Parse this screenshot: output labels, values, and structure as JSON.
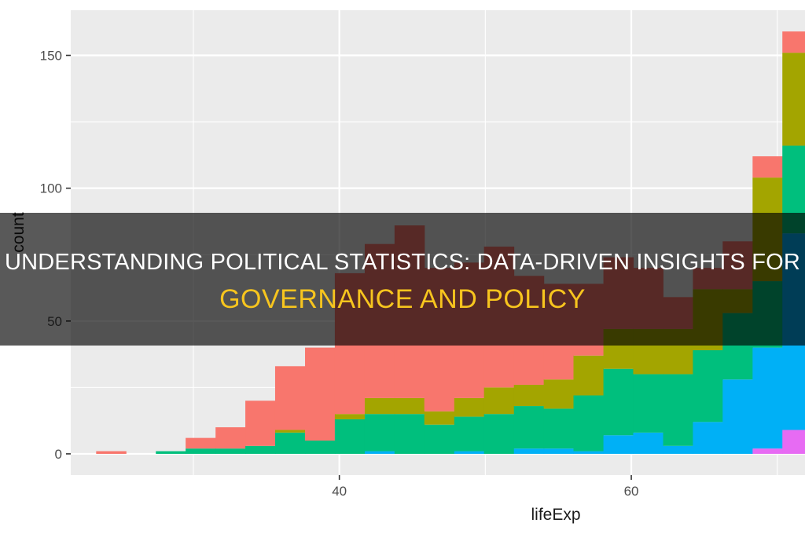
{
  "title": {
    "line1": "UNDERSTANDING POLITICAL STATISTICS: DATA-DRIVEN INSIGHTS FOR",
    "line2": "GOVERNANCE AND POLICY",
    "line1_color": "#ffffff",
    "line2_color": "#f7c51e"
  },
  "chart_data": {
    "type": "bar",
    "stacked": true,
    "histogram": true,
    "xlabel": "lifeExp",
    "ylabel": "count",
    "x_ticks": [
      40,
      60
    ],
    "y_ticks": [
      0,
      50,
      100,
      150
    ],
    "x_tick_labels": [
      "40",
      "60"
    ],
    "y_tick_labels": [
      "0",
      "50",
      "100",
      "150"
    ],
    "xlim": [
      21.6,
      71.9
    ],
    "ylim": [
      -8,
      167
    ],
    "grid": true,
    "panel_background": "#ebebeb",
    "binwidth": 2.04,
    "bin_centers": [
      24.36,
      26.4,
      28.45,
      30.49,
      32.54,
      34.58,
      36.62,
      38.67,
      40.71,
      42.76,
      44.8,
      46.84,
      48.89,
      50.93,
      52.98,
      55.02,
      57.06,
      59.11,
      61.15,
      63.2,
      65.24,
      67.28,
      69.33,
      71.37
    ],
    "series": [
      {
        "color": "#e76bf3",
        "values": [
          0,
          0,
          0,
          0,
          0,
          0,
          0,
          0,
          0,
          0,
          0,
          0,
          0,
          0,
          0,
          0,
          0,
          0,
          0,
          0,
          0,
          0,
          2,
          9
        ]
      },
      {
        "color": "#00b0f6",
        "values": [
          0,
          0,
          0,
          0,
          0,
          0,
          0,
          0,
          0,
          1,
          0,
          0,
          1,
          0,
          2,
          2,
          1,
          7,
          8,
          3,
          12,
          28,
          38,
          74
        ]
      },
      {
        "color": "#00bf7d",
        "values": [
          0,
          0,
          1,
          2,
          2,
          3,
          8,
          5,
          13,
          14,
          15,
          11,
          13,
          15,
          16,
          15,
          21,
          25,
          22,
          27,
          27,
          25,
          25,
          33
        ]
      },
      {
        "color": "#a3a500",
        "values": [
          0,
          0,
          0,
          0,
          0,
          0,
          1,
          0,
          2,
          6,
          6,
          5,
          7,
          10,
          8,
          11,
          15,
          15,
          17,
          17,
          23,
          9,
          39,
          35
        ]
      },
      {
        "color": "#f8766d",
        "values": [
          1,
          0,
          0,
          4,
          8,
          17,
          24,
          35,
          53,
          58,
          65,
          54,
          51,
          53,
          41,
          36,
          27,
          27,
          23,
          12,
          8,
          18,
          8,
          8
        ]
      }
    ]
  }
}
